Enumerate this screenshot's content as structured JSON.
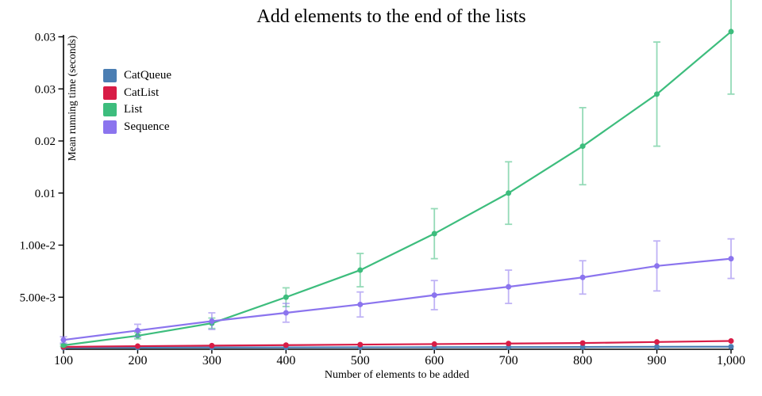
{
  "chart_data": {
    "type": "line",
    "title": "Add elements to the end of the lists",
    "xlabel": "Number of elements to be added",
    "ylabel": "Mean running time (seconds)",
    "x": [
      100,
      200,
      300,
      400,
      500,
      600,
      700,
      800,
      900,
      1000
    ],
    "x_tick_labels": [
      "100",
      "200",
      "300",
      "400",
      "500",
      "600",
      "700",
      "800",
      "900",
      "1,000"
    ],
    "y_ticks": [
      {
        "value": 0.005,
        "label": "5.00e-3"
      },
      {
        "value": 0.01,
        "label": "1.00e-2"
      },
      {
        "value": 0.015,
        "label": "0.01"
      },
      {
        "value": 0.02,
        "label": "0.02"
      },
      {
        "value": 0.025,
        "label": "0.03"
      },
      {
        "value": 0.03,
        "label": "0.03"
      }
    ],
    "xlim": [
      100,
      1000
    ],
    "ylim": [
      0,
      0.0305
    ],
    "grid": false,
    "legend_position": "top-left",
    "error_bars": true,
    "series": [
      {
        "name": "CatQueue",
        "color": "#4b7eb3",
        "values": [
          0.00015,
          0.00016,
          0.00017,
          0.00018,
          0.00019,
          0.0002,
          0.00021,
          0.00022,
          0.00024,
          0.00025
        ],
        "errors": [
          0,
          0,
          0,
          0,
          0,
          0,
          0,
          0,
          0,
          0
        ]
      },
      {
        "name": "CatList",
        "color": "#d81c46",
        "values": [
          0.00023,
          0.0003,
          0.00035,
          0.0004,
          0.00045,
          0.0005,
          0.00055,
          0.0006,
          0.0007,
          0.0008
        ],
        "errors": [
          0,
          0,
          0,
          0,
          0,
          0,
          0,
          0,
          0,
          0
        ]
      },
      {
        "name": "List",
        "color": "#3dbd7d",
        "values": [
          0.00038,
          0.0013,
          0.0025,
          0.005,
          0.0076,
          0.0111,
          0.015,
          0.0195,
          0.0245,
          0.0305
        ],
        "errors": [
          0.0001,
          0.0003,
          0.0005,
          0.0009,
          0.0016,
          0.0024,
          0.003,
          0.0037,
          0.005,
          0.006
        ]
      },
      {
        "name": "Sequence",
        "color": "#8b74ee",
        "values": [
          0.0009,
          0.0018,
          0.0027,
          0.0035,
          0.0043,
          0.0052,
          0.006,
          0.0069,
          0.008,
          0.0087
        ],
        "errors": [
          0.0003,
          0.0006,
          0.0008,
          0.0009,
          0.0012,
          0.0014,
          0.0016,
          0.0016,
          0.0024,
          0.0019
        ]
      }
    ]
  }
}
